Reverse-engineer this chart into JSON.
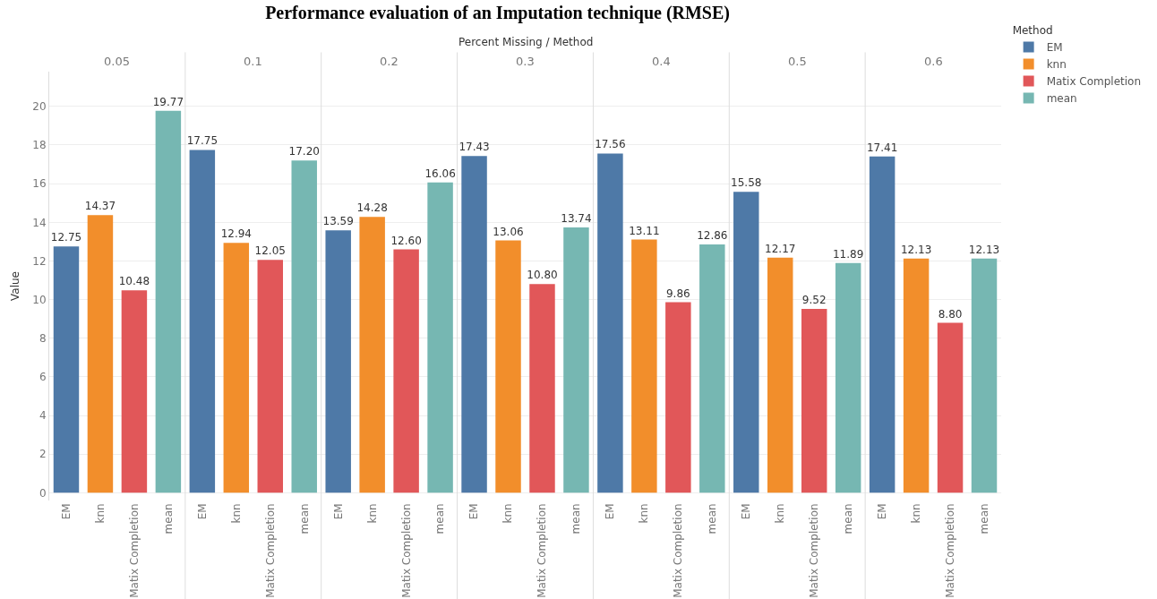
{
  "chart_data": {
    "type": "bar",
    "title": "Performance evaluation of an Imputation technique (RMSE)",
    "xlabel": "Percent Missing / Method",
    "ylabel": "Value",
    "legend_title": "Method",
    "annotations": [
      "0.05",
      "0.1",
      "0.2",
      "0.3",
      "0.4",
      "0.5",
      "0.6"
    ],
    "categories": [
      "EM",
      "knn",
      "Matix Completion",
      "mean",
      "EM",
      "knn",
      "Matix Completion",
      "mean",
      "EM",
      "knn",
      "Matix Completion",
      "mean",
      "EM",
      "knn",
      "Matix Completion",
      "mean",
      "EM",
      "knn",
      "Matix Completion",
      "mean",
      "EM",
      "knn",
      "Matix Completion",
      "mean",
      "EM",
      "knn",
      "Matix Completion",
      "mean"
    ],
    "series": [
      {
        "name": "EM",
        "color": "#4e79a7",
        "values": [
          12.75,
          null,
          null,
          null,
          17.75,
          null,
          null,
          null,
          13.59,
          null,
          null,
          null,
          17.43,
          null,
          null,
          null,
          17.56,
          null,
          null,
          null,
          15.58,
          null,
          null,
          null,
          17.41,
          null,
          null,
          null
        ],
        "value_labels": [
          "12.75",
          null,
          null,
          null,
          "17.75",
          null,
          null,
          null,
          "13.59",
          null,
          null,
          null,
          "17.43",
          null,
          null,
          null,
          "17.56",
          null,
          null,
          null,
          "15.58",
          null,
          null,
          null,
          "17.41",
          null,
          null,
          null
        ]
      },
      {
        "name": "knn",
        "color": "#f28e2b",
        "values": [
          null,
          14.37,
          null,
          null,
          null,
          12.94,
          null,
          null,
          null,
          14.28,
          null,
          null,
          null,
          13.06,
          null,
          null,
          null,
          13.11,
          null,
          null,
          null,
          12.17,
          null,
          null,
          null,
          12.13,
          null,
          null
        ],
        "value_labels": [
          null,
          "14.37",
          null,
          null,
          null,
          "12.94",
          null,
          null,
          null,
          "14.28",
          null,
          null,
          null,
          "13.06",
          null,
          null,
          null,
          "13.11",
          null,
          null,
          null,
          "12.17",
          null,
          null,
          null,
          "12.13",
          null,
          null
        ]
      },
      {
        "name": "Matix Completion",
        "color": "#e15759",
        "values": [
          null,
          null,
          10.48,
          null,
          null,
          null,
          12.05,
          null,
          null,
          null,
          12.6,
          null,
          null,
          null,
          10.8,
          null,
          null,
          null,
          9.86,
          null,
          null,
          null,
          9.52,
          null,
          null,
          null,
          8.8,
          null
        ],
        "value_labels": [
          null,
          null,
          "10.48",
          null,
          null,
          null,
          "12.05",
          null,
          null,
          null,
          "12.60",
          null,
          null,
          null,
          "10.80",
          null,
          null,
          null,
          "9.86",
          null,
          null,
          null,
          "9.52",
          null,
          null,
          null,
          "8.80",
          null
        ]
      },
      {
        "name": "mean",
        "color": "#76b7b2",
        "values": [
          null,
          null,
          null,
          19.77,
          null,
          null,
          null,
          17.2,
          null,
          null,
          null,
          16.06,
          null,
          null,
          null,
          13.74,
          null,
          null,
          null,
          12.86,
          null,
          null,
          null,
          11.89,
          null,
          null,
          null,
          12.13
        ],
        "value_labels": [
          null,
          null,
          null,
          "19.77",
          null,
          null,
          null,
          "17.20",
          null,
          null,
          null,
          "16.06",
          null,
          null,
          null,
          "13.74",
          null,
          null,
          null,
          "12.86",
          null,
          null,
          null,
          "11.89",
          null,
          null,
          null,
          "12.13"
        ]
      }
    ],
    "ylim": [
      -0.4,
      21.8
    ],
    "yticks": [
      0,
      2,
      4,
      6,
      8,
      10,
      12,
      14,
      16,
      18,
      20
    ],
    "grid": "y",
    "legend": "top right"
  }
}
